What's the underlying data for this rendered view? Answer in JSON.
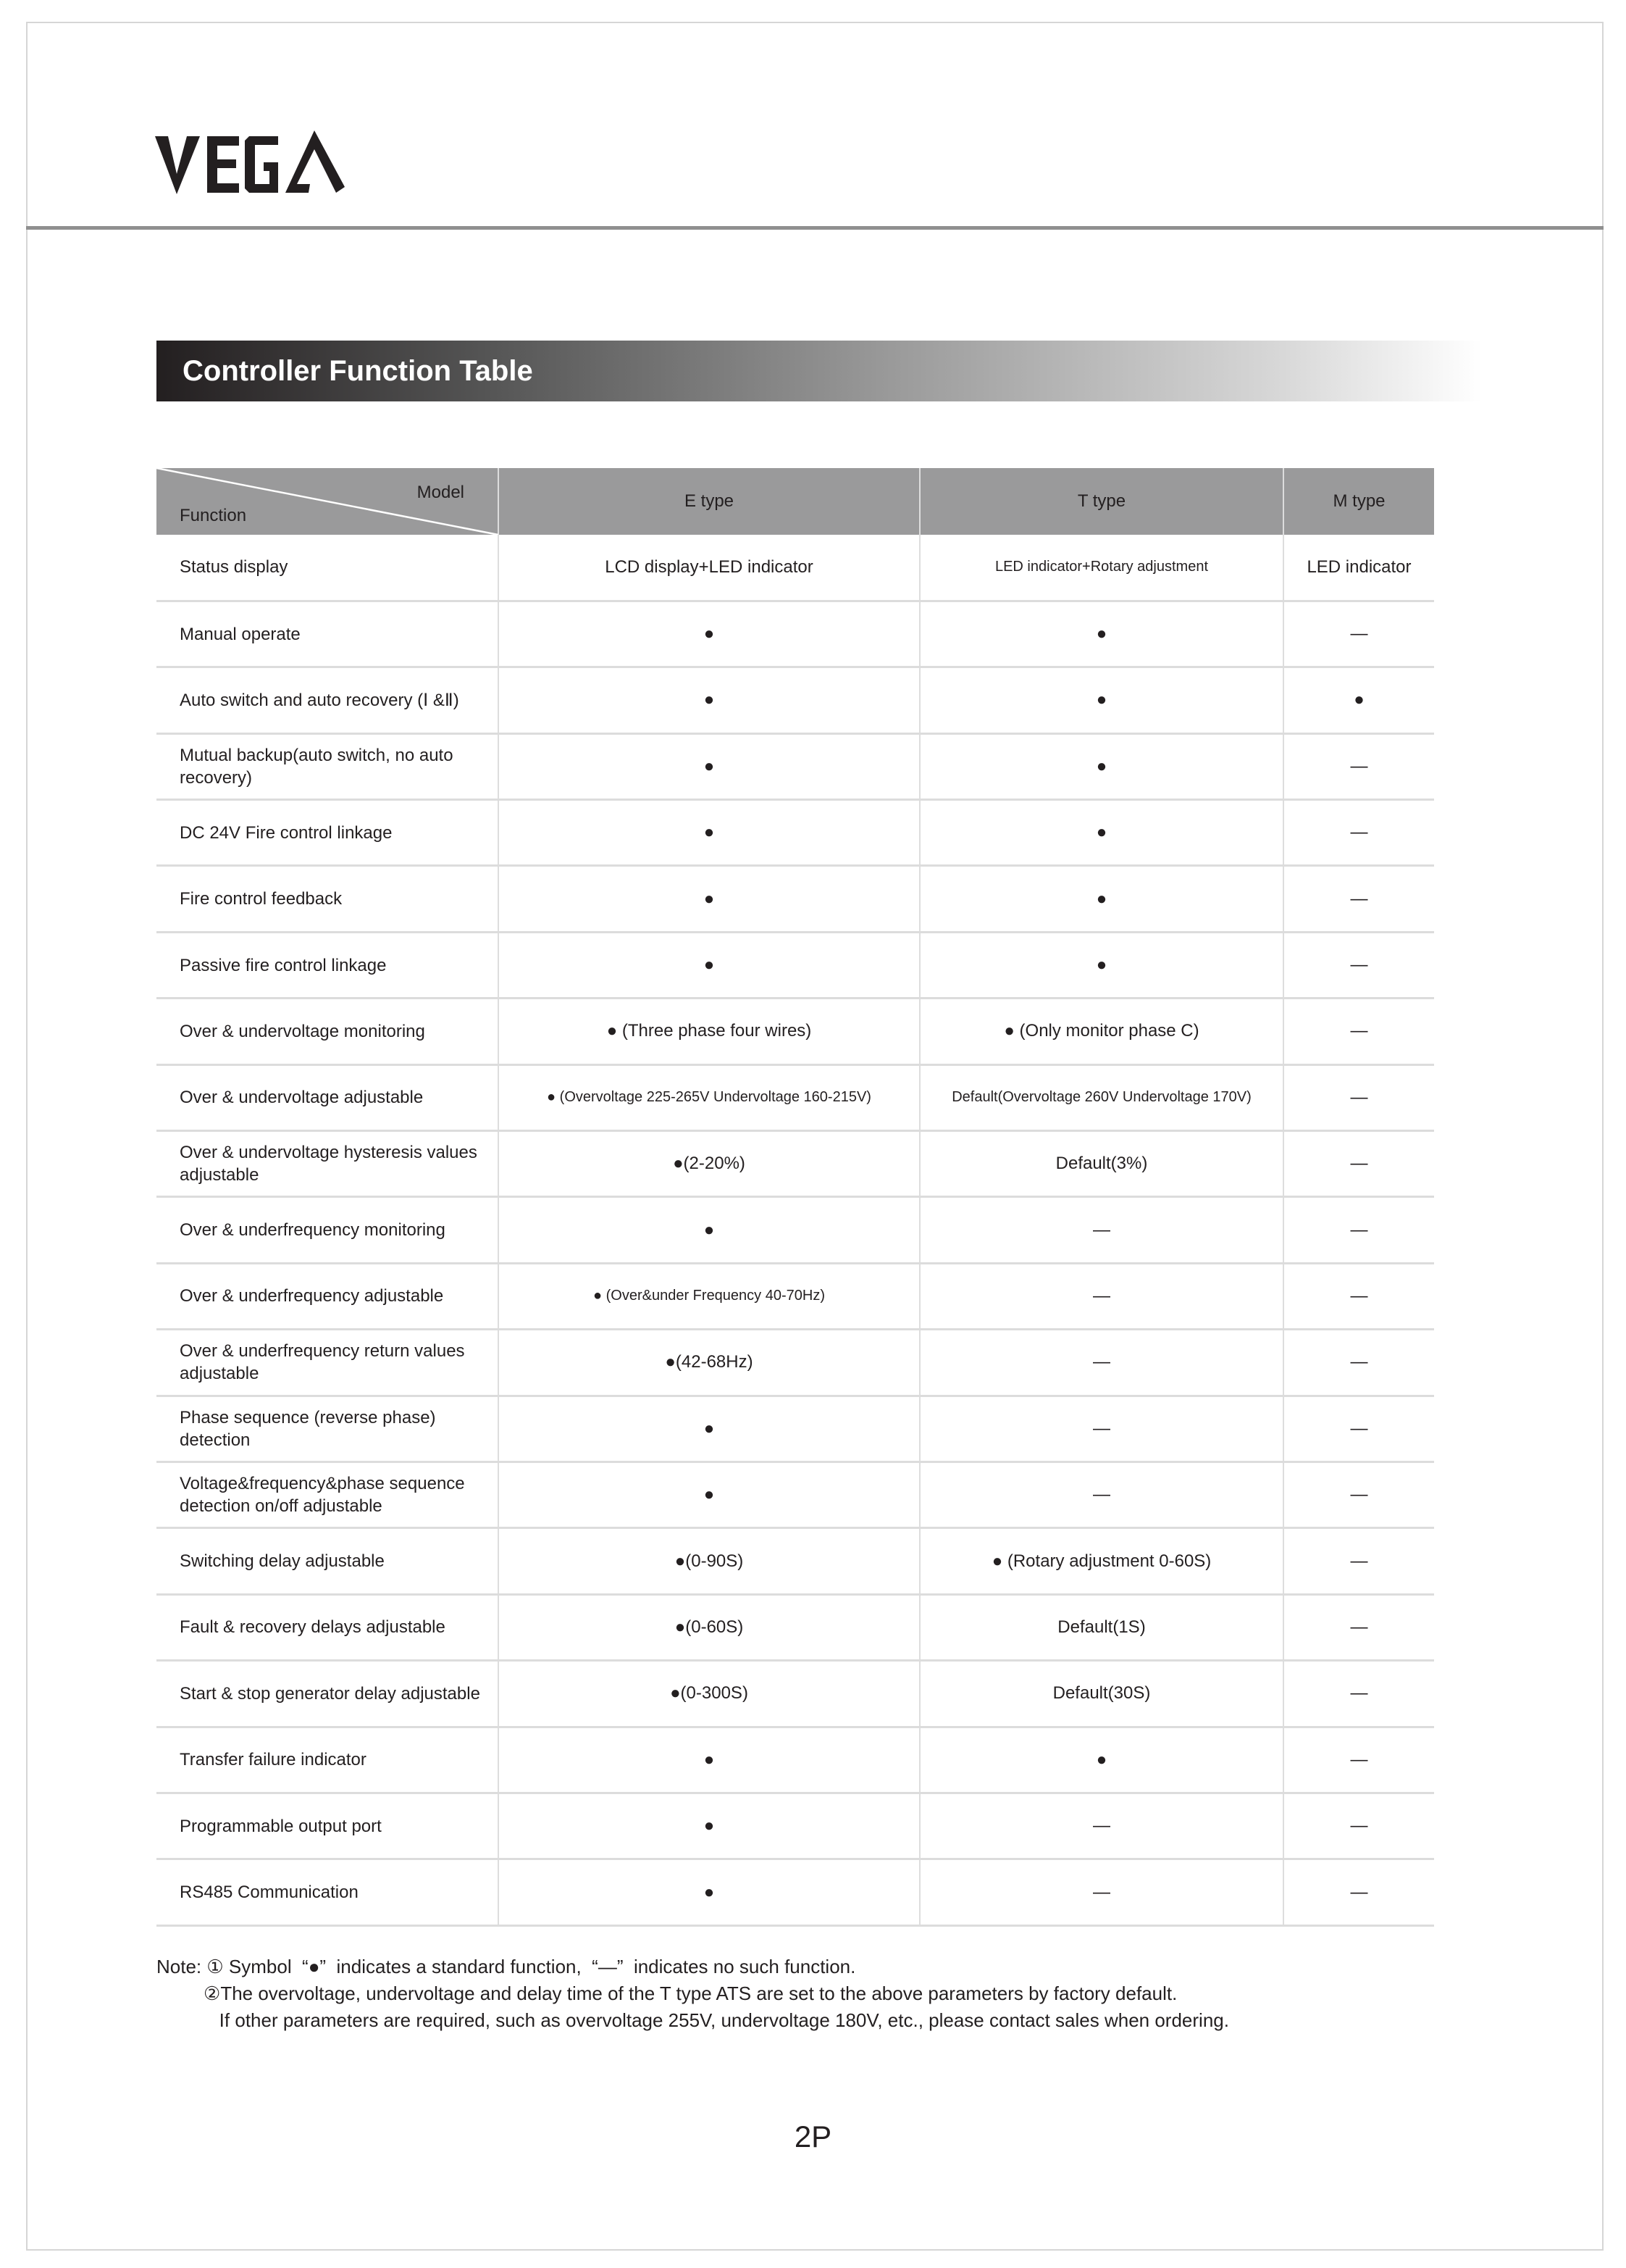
{
  "brand": {
    "logo_text": "VEGA"
  },
  "title": "Controller Function Table",
  "table": {
    "corner_model": "Model",
    "corner_function": "Function",
    "columns": [
      "E type",
      "T type",
      "M type"
    ],
    "rows": [
      {
        "function": "Status display",
        "e": "LCD display+LED indicator",
        "t": "LED indicator+Rotary adjustment",
        "m": "LED indicator"
      },
      {
        "function": "Manual operate",
        "e": "●",
        "t": "●",
        "m": "—"
      },
      {
        "function": "Auto switch and auto recovery (Ⅰ &Ⅱ)",
        "e": "●",
        "t": "●",
        "m": "●"
      },
      {
        "function": "Mutual backup(auto switch, no auto recovery)",
        "e": "●",
        "t": "●",
        "m": "—"
      },
      {
        "function": "DC 24V Fire control linkage",
        "e": "●",
        "t": "●",
        "m": "—"
      },
      {
        "function": "Fire control feedback",
        "e": "●",
        "t": "●",
        "m": "—"
      },
      {
        "function": "Passive fire control linkage",
        "e": "●",
        "t": "●",
        "m": "—"
      },
      {
        "function": "Over & undervoltage monitoring",
        "e": "● (Three phase four wires)",
        "t": "● (Only monitor phase C)",
        "m": "—"
      },
      {
        "function": "Over & undervoltage adjustable",
        "e": "● (Overvoltage 225-265V Undervoltage 160-215V)",
        "t": "Default(Overvoltage 260V Undervoltage 170V)",
        "m": "—"
      },
      {
        "function": "Over & undervoltage hysteresis values adjustable",
        "e": "●(2-20%)",
        "t": "Default(3%)",
        "m": "—"
      },
      {
        "function": "Over & underfrequency monitoring",
        "e": "●",
        "t": "—",
        "m": "—"
      },
      {
        "function": "Over & underfrequency adjustable",
        "e": "● (Over&under Frequency 40-70Hz)",
        "t": "—",
        "m": "—"
      },
      {
        "function": "Over & underfrequency return values adjustable",
        "e": "●(42-68Hz)",
        "t": "—",
        "m": "—"
      },
      {
        "function": "Phase sequence (reverse phase) detection",
        "e": "●",
        "t": "—",
        "m": "—"
      },
      {
        "function": "Voltage&frequency&phase sequence detection on/off adjustable",
        "e": "●",
        "t": "—",
        "m": "—"
      },
      {
        "function": "Switching delay adjustable",
        "e": "●(0-90S)",
        "t": "● (Rotary adjustment 0-60S)",
        "m": "—"
      },
      {
        "function": "Fault & recovery delays adjustable",
        "e": "●(0-60S)",
        "t": "Default(1S)",
        "m": "—"
      },
      {
        "function": "Start & stop generator delay adjustable",
        "e": "●(0-300S)",
        "t": "Default(30S)",
        "m": "—"
      },
      {
        "function": "Transfer failure indicator",
        "e": "●",
        "t": "●",
        "m": "—"
      },
      {
        "function": "Programmable output port",
        "e": "●",
        "t": "—",
        "m": "—"
      },
      {
        "function": "RS485 Communication",
        "e": "●",
        "t": "—",
        "m": "—"
      }
    ]
  },
  "notes": [
    "Note: ① Symbol  “●”  indicates a standard function,  “—”  indicates no such function.",
    "         ②The overvoltage, undervoltage and delay time of the T type ATS are set to the above parameters by factory default.",
    "            If other parameters are required, such as overvoltage 255V, undervoltage 180V, etc., please contact sales when ordering."
  ],
  "page_number": "2P"
}
